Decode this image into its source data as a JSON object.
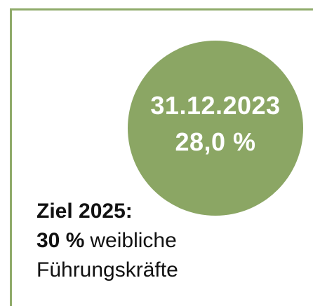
{
  "circle": {
    "date": "31.12.2023",
    "value": "28,0 %"
  },
  "goal": {
    "title": "Ziel 2025:",
    "value": "30 %",
    "text": "weibliche",
    "line2": "Führungskräfte"
  }
}
